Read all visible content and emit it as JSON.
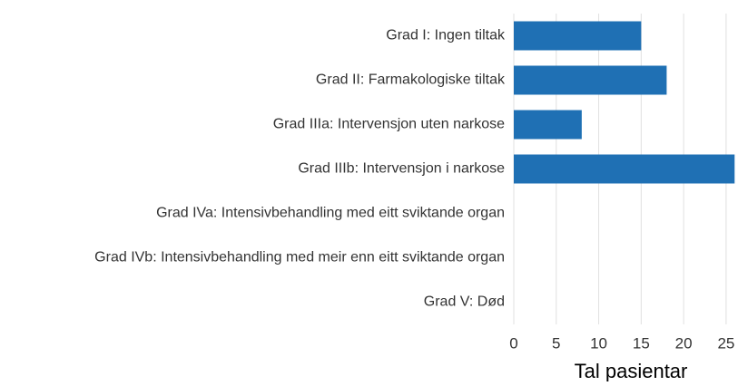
{
  "chart_data": {
    "type": "barh",
    "categories": [
      "Grad I: Ingen tiltak",
      "Grad II: Farmakologiske tiltak",
      "Grad IIIa: Intervensjon uten narkose",
      "Grad IIIb: Intervensjon i narkose",
      "Grad IVa: Intensivbehandling med eitt sviktande organ",
      "Grad IVb: Intensivbehandling med meir enn eitt sviktande organ",
      "Grad V: Død"
    ],
    "values": [
      15,
      18,
      8,
      26,
      0,
      0,
      0
    ],
    "color": "#1f70b4",
    "xlabel": "Tal pasientar",
    "xlim": [
      0,
      26.4
    ],
    "xticks": [
      0,
      5,
      10,
      15,
      20,
      25
    ],
    "grid": true
  }
}
